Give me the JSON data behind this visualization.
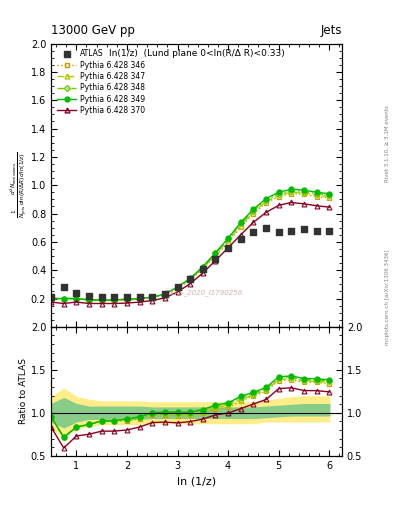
{
  "title_top": "13000 GeV pp",
  "title_right": "Jets",
  "plot_title": "ln(1/z)  (Lund plane 0<ln(R/Δ R)<0.33)",
  "xlabel": "ln (1/z)",
  "ylabel_main": "$\\frac{1}{N_{\\mathrm{jets}}}\\frac{d^2 N_{\\mathrm{emissions}}}{d\\ln(R/\\Delta R)\\, d\\ln(1/z)}$",
  "ylabel_ratio": "Ratio to ATLAS",
  "watermark": "ATLAS_2020_I1790256",
  "right_label": "Rivet 3.1.10, ≥ 3.1M events",
  "right_label2": "mcplots.cern.ch [arXiv:1306.3436]",
  "atlas_x": [
    0.5,
    0.75,
    1.0,
    1.25,
    1.5,
    1.75,
    2.0,
    2.25,
    2.5,
    2.75,
    3.0,
    3.25,
    3.5,
    3.75,
    4.0,
    4.25,
    4.5,
    4.75,
    5.0,
    5.25,
    5.5,
    5.75,
    6.0
  ],
  "atlas_y": [
    0.21,
    0.28,
    0.24,
    0.22,
    0.21,
    0.21,
    0.21,
    0.21,
    0.21,
    0.23,
    0.28,
    0.34,
    0.41,
    0.48,
    0.56,
    0.62,
    0.67,
    0.7,
    0.67,
    0.68,
    0.69,
    0.68,
    0.68
  ],
  "p346_x": [
    0.5,
    0.75,
    1.0,
    1.25,
    1.5,
    1.75,
    2.0,
    2.25,
    2.5,
    2.75,
    3.0,
    3.25,
    3.5,
    3.75,
    4.0,
    4.25,
    4.5,
    4.75,
    5.0,
    5.25,
    5.5,
    5.75,
    6.0
  ],
  "p346_y": [
    0.2,
    0.2,
    0.2,
    0.19,
    0.19,
    0.19,
    0.19,
    0.195,
    0.205,
    0.225,
    0.27,
    0.33,
    0.41,
    0.5,
    0.595,
    0.705,
    0.8,
    0.875,
    0.92,
    0.94,
    0.935,
    0.92,
    0.91
  ],
  "p347_x": [
    0.5,
    0.75,
    1.0,
    1.25,
    1.5,
    1.75,
    2.0,
    2.25,
    2.5,
    2.75,
    3.0,
    3.25,
    3.5,
    3.75,
    4.0,
    4.25,
    4.5,
    4.75,
    5.0,
    5.25,
    5.5,
    5.75,
    6.0
  ],
  "p347_y": [
    0.2,
    0.2,
    0.2,
    0.19,
    0.19,
    0.19,
    0.195,
    0.2,
    0.21,
    0.23,
    0.275,
    0.335,
    0.415,
    0.51,
    0.61,
    0.715,
    0.81,
    0.885,
    0.93,
    0.95,
    0.945,
    0.93,
    0.92
  ],
  "p348_x": [
    0.5,
    0.75,
    1.0,
    1.25,
    1.5,
    1.75,
    2.0,
    2.25,
    2.5,
    2.75,
    3.0,
    3.25,
    3.5,
    3.75,
    4.0,
    4.25,
    4.5,
    4.75,
    5.0,
    5.25,
    5.5,
    5.75,
    6.0
  ],
  "p348_y": [
    0.2,
    0.2,
    0.2,
    0.19,
    0.19,
    0.19,
    0.195,
    0.2,
    0.21,
    0.23,
    0.28,
    0.34,
    0.42,
    0.52,
    0.62,
    0.73,
    0.82,
    0.895,
    0.94,
    0.96,
    0.955,
    0.94,
    0.93
  ],
  "p349_x": [
    0.5,
    0.75,
    1.0,
    1.25,
    1.5,
    1.75,
    2.0,
    2.25,
    2.5,
    2.75,
    3.0,
    3.25,
    3.5,
    3.75,
    4.0,
    4.25,
    4.5,
    4.75,
    5.0,
    5.25,
    5.5,
    5.75,
    6.0
  ],
  "p349_y": [
    0.2,
    0.2,
    0.2,
    0.19,
    0.19,
    0.19,
    0.195,
    0.2,
    0.21,
    0.232,
    0.282,
    0.342,
    0.425,
    0.523,
    0.625,
    0.738,
    0.83,
    0.906,
    0.95,
    0.972,
    0.965,
    0.95,
    0.94
  ],
  "p370_x": [
    0.5,
    0.75,
    1.0,
    1.25,
    1.5,
    1.75,
    2.0,
    2.25,
    2.5,
    2.75,
    3.0,
    3.25,
    3.5,
    3.75,
    4.0,
    4.25,
    4.5,
    4.75,
    5.0,
    5.25,
    5.5,
    5.75,
    6.0
  ],
  "p370_y": [
    0.175,
    0.165,
    0.175,
    0.165,
    0.165,
    0.165,
    0.168,
    0.175,
    0.186,
    0.205,
    0.247,
    0.305,
    0.38,
    0.468,
    0.558,
    0.65,
    0.738,
    0.808,
    0.858,
    0.878,
    0.868,
    0.855,
    0.845
  ],
  "band_x": [
    0.5,
    0.75,
    1.0,
    1.25,
    1.5,
    1.75,
    2.0,
    2.25,
    2.5,
    2.75,
    3.0,
    3.25,
    3.5,
    3.75,
    4.0,
    4.25,
    4.5,
    4.75,
    5.0,
    5.25,
    5.5,
    5.75,
    6.0
  ],
  "band_yellow_lo": [
    0.82,
    0.72,
    0.82,
    0.85,
    0.87,
    0.87,
    0.87,
    0.87,
    0.88,
    0.88,
    0.88,
    0.88,
    0.88,
    0.88,
    0.88,
    0.88,
    0.88,
    0.9,
    0.9,
    0.9,
    0.9,
    0.9,
    0.9
  ],
  "band_yellow_hi": [
    1.18,
    1.28,
    1.18,
    1.15,
    1.13,
    1.13,
    1.13,
    1.13,
    1.12,
    1.12,
    1.12,
    1.12,
    1.12,
    1.12,
    1.12,
    1.12,
    1.12,
    1.14,
    1.16,
    1.18,
    1.19,
    1.19,
    1.19
  ],
  "band_green_lo": [
    0.9,
    0.83,
    0.9,
    0.93,
    0.93,
    0.93,
    0.93,
    0.93,
    0.94,
    0.94,
    0.94,
    0.94,
    0.94,
    0.94,
    0.94,
    0.94,
    0.94,
    0.95,
    0.96,
    0.97,
    0.97,
    0.97,
    0.97
  ],
  "band_green_hi": [
    1.1,
    1.17,
    1.1,
    1.07,
    1.07,
    1.07,
    1.07,
    1.07,
    1.06,
    1.06,
    1.06,
    1.06,
    1.06,
    1.06,
    1.06,
    1.06,
    1.06,
    1.07,
    1.08,
    1.09,
    1.1,
    1.1,
    1.1
  ],
  "color_atlas": "#333333",
  "color_346": "#cc9900",
  "color_347": "#aacc00",
  "color_348": "#66cc00",
  "color_349": "#00bb00",
  "color_370": "#880022",
  "xlim": [
    0.5,
    6.25
  ],
  "ylim_main": [
    0.0,
    2.0
  ],
  "ylim_ratio": [
    0.5,
    2.0
  ],
  "yticks_main": [
    0.2,
    0.4,
    0.6,
    0.8,
    1.0,
    1.2,
    1.4,
    1.6,
    1.8,
    2.0
  ],
  "yticks_ratio": [
    0.5,
    1.0,
    1.5,
    2.0
  ],
  "xticks": [
    1,
    2,
    3,
    4,
    5,
    6
  ]
}
